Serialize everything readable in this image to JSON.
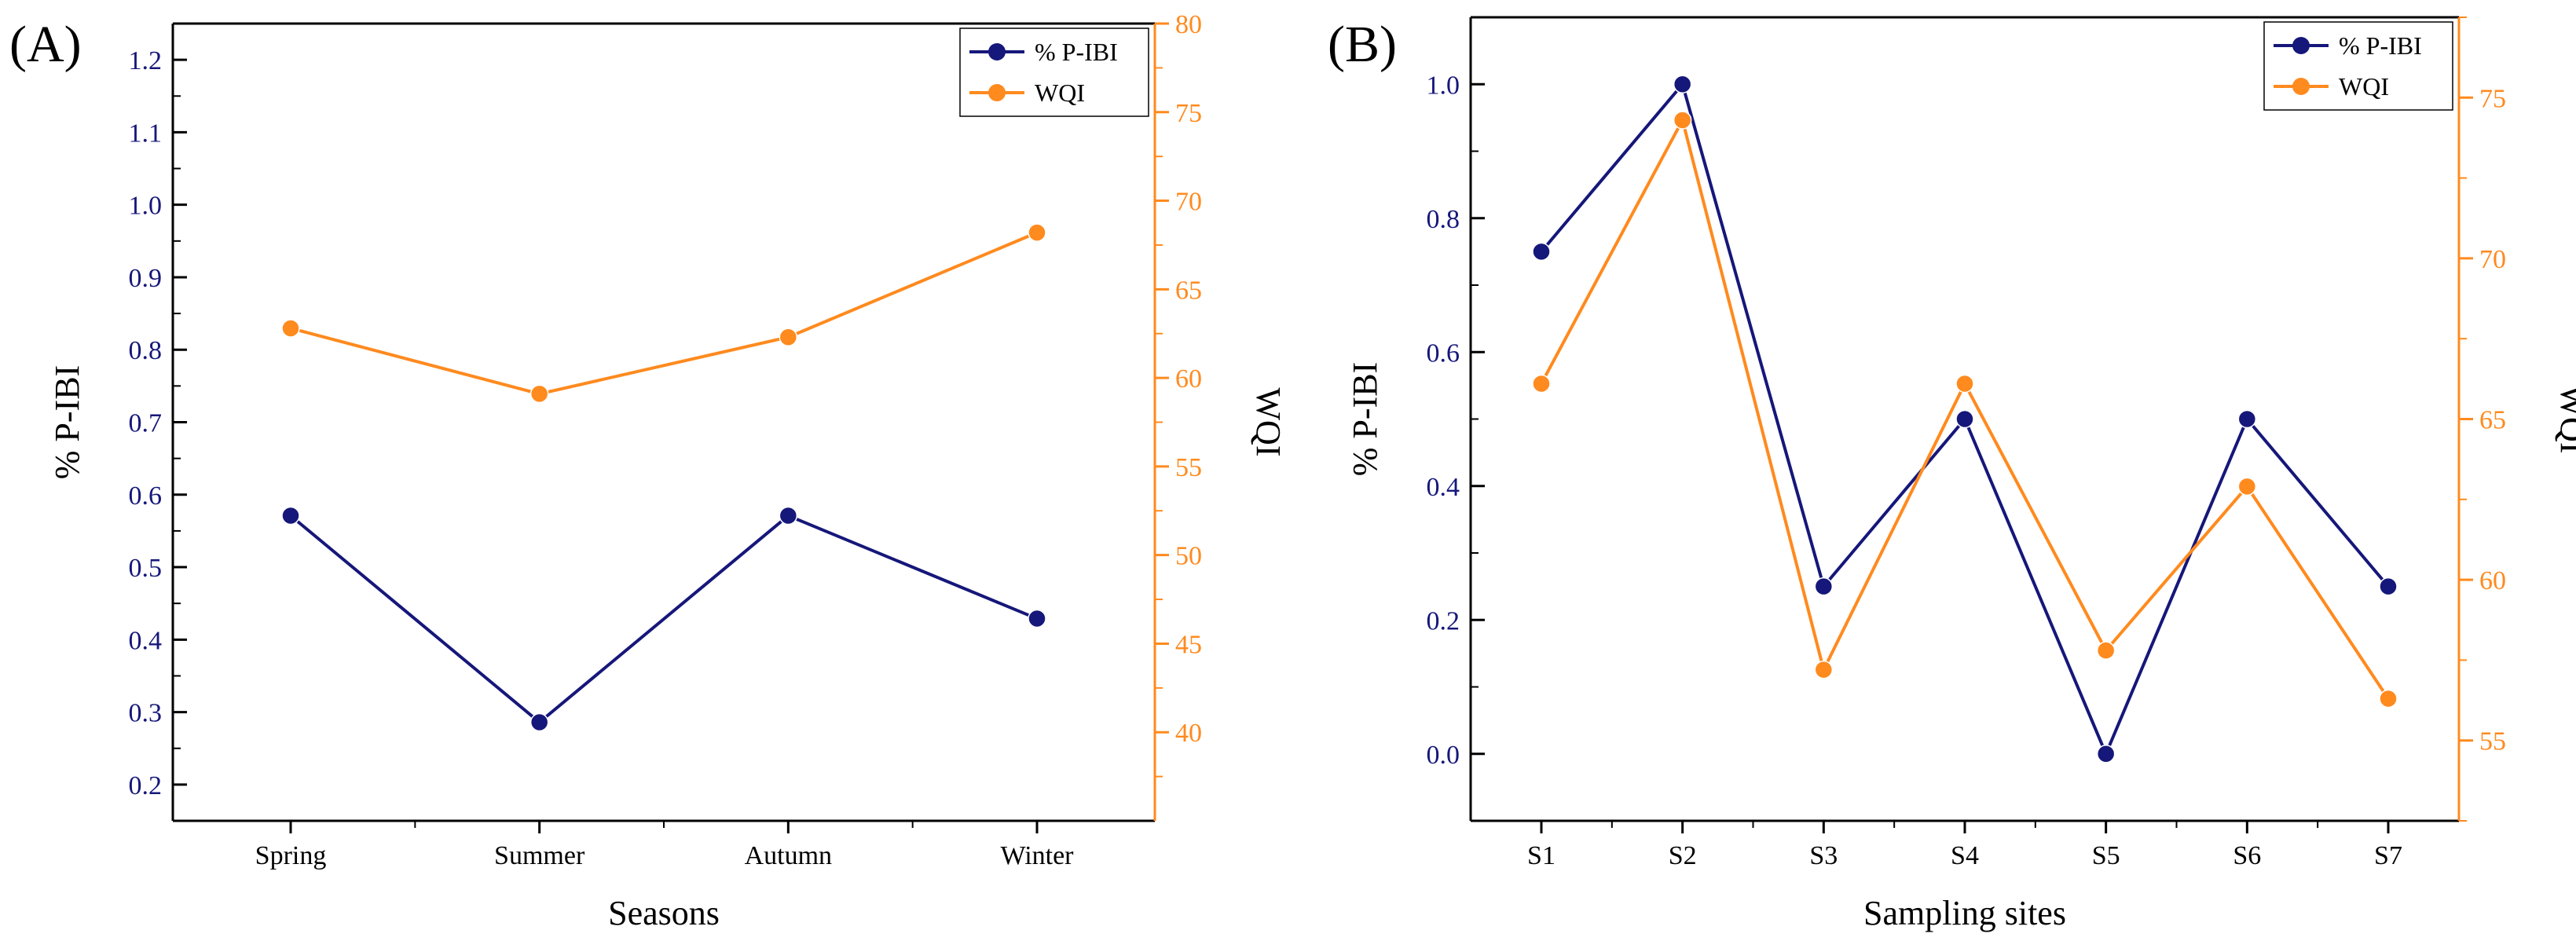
{
  "colors": {
    "pibi": "#16177a",
    "wqi": "#ff8a1e",
    "frame": "#000000"
  },
  "chart_data": [
    {
      "type": "line",
      "panel_label": "(A)",
      "xlabel": "Seasons",
      "ylabel_left": "% P-IBI",
      "ylabel_right": "WQI",
      "categories": [
        "Spring",
        "Summer",
        "Autumn",
        "Winter"
      ],
      "y_left": {
        "lim": [
          0.15,
          1.25
        ],
        "ticks": [
          "0.2",
          "0.3",
          "0.4",
          "0.5",
          "0.6",
          "0.7",
          "0.8",
          "0.9",
          "1.0",
          "1.1",
          "1.2"
        ]
      },
      "y_right": {
        "lim": [
          35,
          80
        ],
        "ticks": [
          "40",
          "45",
          "50",
          "55",
          "60",
          "65",
          "70",
          "75",
          "80"
        ]
      },
      "series": [
        {
          "name": "% P-IBI",
          "axis": "left",
          "values": [
            0.571,
            0.286,
            0.571,
            0.429
          ]
        },
        {
          "name": "WQI",
          "axis": "right",
          "values": [
            62.8,
            59.1,
            62.3,
            68.2
          ]
        }
      ],
      "legend_position": "top-right"
    },
    {
      "type": "line",
      "panel_label": "(B)",
      "xlabel": "Sampling sites",
      "ylabel_left": "% P-IBI",
      "ylabel_right": "WQI",
      "categories": [
        "S1",
        "S2",
        "S3",
        "S4",
        "S5",
        "S6",
        "S7"
      ],
      "y_left": {
        "lim": [
          -0.1,
          1.1
        ],
        "ticks": [
          "0.0",
          "0.2",
          "0.4",
          "0.6",
          "0.8",
          "1.0"
        ]
      },
      "y_right": {
        "lim": [
          52.5,
          77.5
        ],
        "ticks": [
          "55",
          "60",
          "65",
          "70",
          "75"
        ]
      },
      "series": [
        {
          "name": "% P-IBI",
          "axis": "left",
          "values": [
            0.75,
            1.0,
            0.25,
            0.5,
            0.0,
            0.5,
            0.25
          ]
        },
        {
          "name": "WQI",
          "axis": "right",
          "values": [
            66.1,
            74.3,
            57.2,
            66.1,
            57.8,
            62.9,
            56.3
          ]
        }
      ],
      "legend_position": "top-right"
    }
  ]
}
